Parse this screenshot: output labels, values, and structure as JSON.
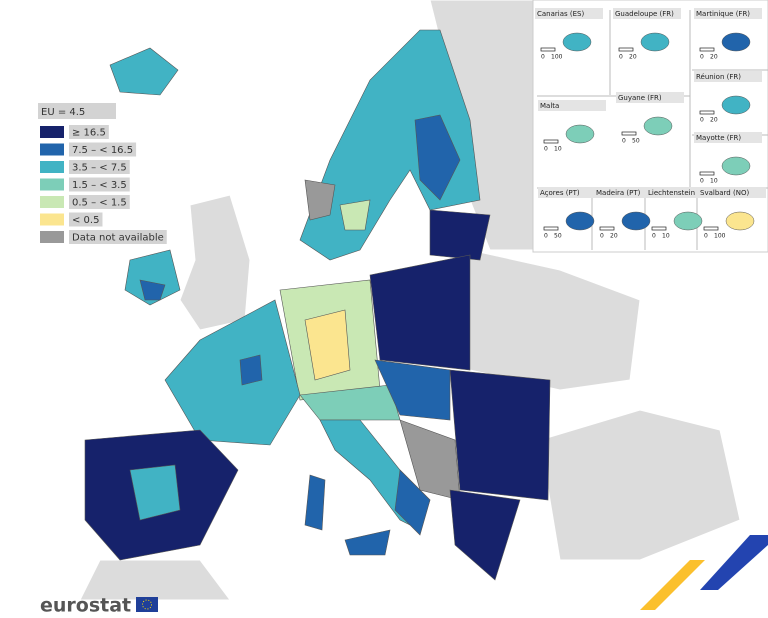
{
  "legend": {
    "title": "EU = 4.5",
    "items": [
      {
        "label": "≥ 16.5",
        "color": "#16226b"
      },
      {
        "label": "7.5 – < 16.5",
        "color": "#2164ab"
      },
      {
        "label": "3.5 – < 7.5",
        "color": "#41b3c4"
      },
      {
        "label": "1.5 – < 3.5",
        "color": "#7dceb8"
      },
      {
        "label": "0.5 – < 1.5",
        "color": "#c9e8b4"
      },
      {
        "label": "< 0.5",
        "color": "#fbe58f"
      },
      {
        "label": "Data not available",
        "color": "#999999"
      }
    ]
  },
  "insets": [
    {
      "label": "Canarias (ES)",
      "scale": [
        0,
        100
      ]
    },
    {
      "label": "Guadeloupe (FR)",
      "scale": [
        0,
        20
      ]
    },
    {
      "label": "Martinique (FR)",
      "scale": [
        0,
        20
      ]
    },
    {
      "label": "Réunion (FR)",
      "scale": [
        0,
        20
      ]
    },
    {
      "label": "Malta",
      "scale": [
        0,
        10
      ]
    },
    {
      "label": "Guyane (FR)",
      "scale": [
        0,
        50
      ]
    },
    {
      "label": "Mayotte (FR)",
      "scale": [
        0,
        10
      ]
    },
    {
      "label": "Açores (PT)",
      "scale": [
        0,
        50
      ]
    },
    {
      "label": "Madeira (PT)",
      "scale": [
        0,
        20
      ]
    },
    {
      "label": "Liechtenstein",
      "scale": [
        0,
        10
      ]
    },
    {
      "label": "Svalbard (NO)",
      "scale": [
        0,
        100
      ]
    }
  ],
  "footer": {
    "brand": "eurostat"
  }
}
